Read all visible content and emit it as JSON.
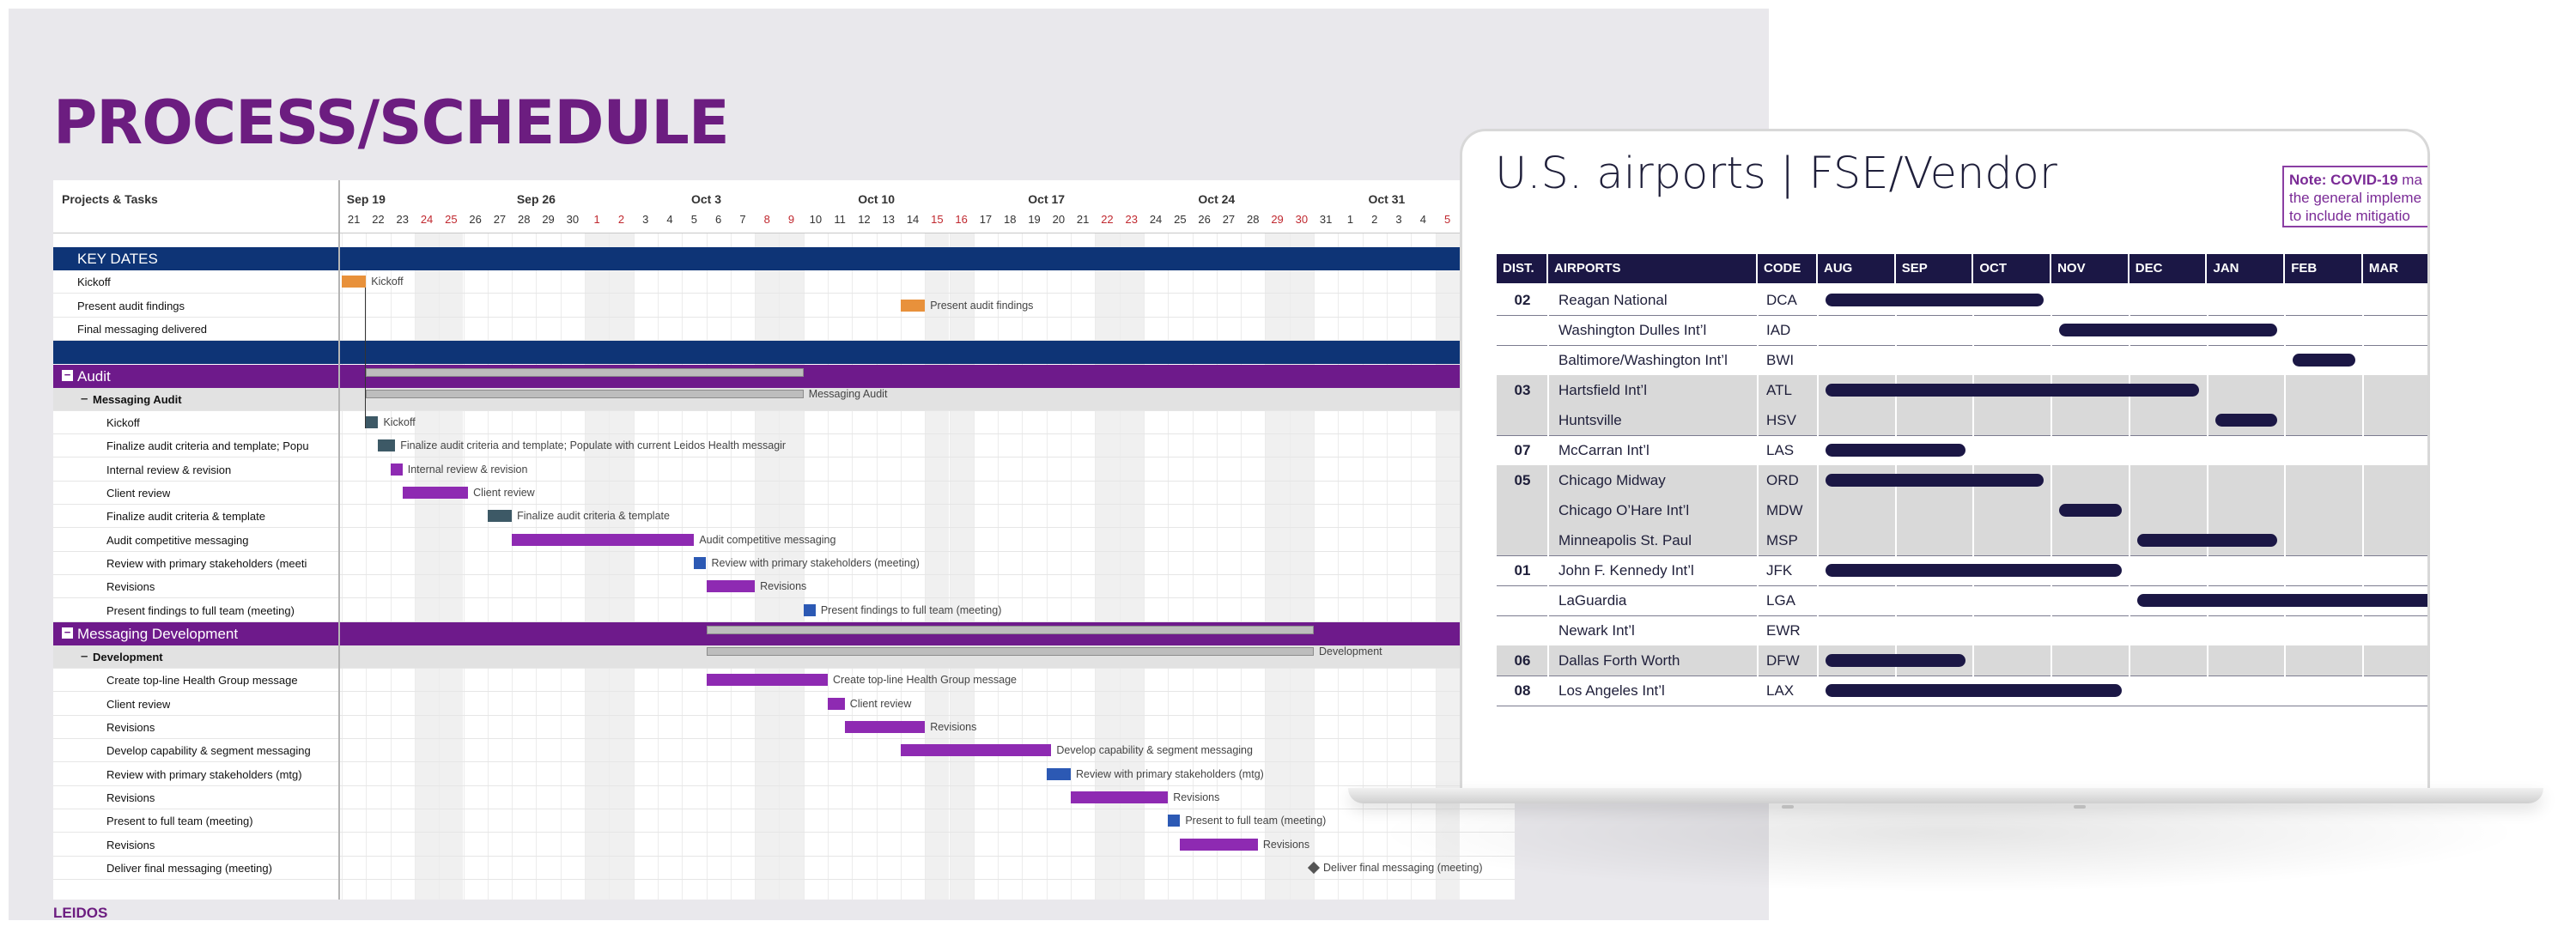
{
  "slide": {
    "title": "PROCESS/SCHEDULE",
    "footer_logo": "LEIDOS"
  },
  "gantt": {
    "task_header": "Projects & Tasks",
    "weeks": [
      "Sep 19",
      "Sep 26",
      "Oct 3",
      "Oct 10",
      "Oct 17",
      "Oct 24",
      "Oct 31"
    ],
    "days": [
      "21",
      "22",
      "23",
      "24",
      "25",
      "26",
      "27",
      "28",
      "29",
      "30",
      "1",
      "2",
      "3",
      "4",
      "5",
      "6",
      "7",
      "8",
      "9",
      "10",
      "11",
      "12",
      "13",
      "14",
      "15",
      "16",
      "17",
      "18",
      "19",
      "20",
      "21",
      "22",
      "23",
      "24",
      "25",
      "26",
      "27",
      "28",
      "29",
      "30",
      "31",
      "1",
      "2",
      "3",
      "4",
      "5"
    ],
    "weekend_day_indices": [
      3,
      4,
      10,
      11,
      17,
      18,
      24,
      25,
      31,
      32,
      38,
      39,
      45
    ],
    "rows": [
      {
        "id": "keydates",
        "type": "band-blue",
        "label": "KEY DATES"
      },
      {
        "id": "kickoff",
        "type": "task",
        "indent": 1,
        "label": "Kickoff",
        "bar": {
          "start": 0,
          "end": 1,
          "color": "orange"
        },
        "bar_label": "Kickoff"
      },
      {
        "id": "present",
        "type": "task",
        "indent": 1,
        "label": "Present audit findings",
        "bar": {
          "start": 23,
          "end": 24,
          "color": "orange"
        },
        "bar_label": "Present audit findings"
      },
      {
        "id": "final",
        "type": "task",
        "indent": 1,
        "label": "Final messaging delivered"
      },
      {
        "id": "spacer",
        "type": "band-blue",
        "label": ""
      },
      {
        "id": "audit",
        "type": "band-purple",
        "label": "Audit",
        "summary": {
          "start": 1,
          "end": 19
        }
      },
      {
        "id": "ma",
        "type": "sub",
        "label": "Messaging Audit",
        "summary": {
          "start": 1,
          "end": 19
        },
        "bar_label": "Messaging Audit"
      },
      {
        "id": "t1",
        "type": "task",
        "indent": 2,
        "label": "Kickoff",
        "bar": {
          "start": 1,
          "end": 1.5,
          "color": "teal"
        },
        "bar_label": "Kickoff"
      },
      {
        "id": "t2",
        "type": "task",
        "indent": 2,
        "label": "Finalize audit criteria and template; Popu",
        "bar": {
          "start": 1.5,
          "end": 2.2,
          "color": "teal"
        },
        "bar_label": "Finalize audit criteria and template; Populate with current Leidos Health messagir"
      },
      {
        "id": "t3",
        "type": "task",
        "indent": 2,
        "label": "Internal review & revision",
        "bar": {
          "start": 2,
          "end": 2.5,
          "color": "purple"
        },
        "bar_label": "Internal review & revision"
      },
      {
        "id": "t4",
        "type": "task",
        "indent": 2,
        "label": "Client review",
        "bar": {
          "start": 2.5,
          "end": 5.2,
          "color": "purple"
        },
        "bar_label": "Client review"
      },
      {
        "id": "t5",
        "type": "task",
        "indent": 2,
        "label": "Finalize audit criteria & template",
        "bar": {
          "start": 6,
          "end": 7,
          "color": "teal"
        },
        "bar_label": "Finalize audit criteria & template"
      },
      {
        "id": "t6",
        "type": "task",
        "indent": 2,
        "label": "Audit competitive messaging",
        "bar": {
          "start": 7,
          "end": 14.5,
          "color": "purple"
        },
        "bar_label": "Audit competitive messaging"
      },
      {
        "id": "t7",
        "type": "task",
        "indent": 2,
        "label": "Review with primary stakeholders (meeti",
        "bar": {
          "start": 14.5,
          "end": 15,
          "color": "blue"
        },
        "bar_label": "Review with primary stakeholders (meeting)"
      },
      {
        "id": "t8",
        "type": "task",
        "indent": 2,
        "label": "Revisions",
        "bar": {
          "start": 15,
          "end": 17,
          "color": "purple"
        },
        "bar_label": "Revisions"
      },
      {
        "id": "t9",
        "type": "task",
        "indent": 2,
        "label": "Present findings to full team (meeting)",
        "bar": {
          "start": 19,
          "end": 19.5,
          "color": "blue"
        },
        "bar_label": "Present findings to full team (meeting)"
      },
      {
        "id": "md",
        "type": "band-purple",
        "label": "Messaging Development",
        "summary": {
          "start": 15,
          "end": 40
        }
      },
      {
        "id": "dev",
        "type": "sub",
        "label": "Development",
        "summary": {
          "start": 15,
          "end": 40
        },
        "bar_label": "Development"
      },
      {
        "id": "d1",
        "type": "task",
        "indent": 2,
        "label": "Create top-line Health Group message",
        "bar": {
          "start": 15,
          "end": 20,
          "color": "purple"
        },
        "bar_label": "Create top-line Health Group message"
      },
      {
        "id": "d2",
        "type": "task",
        "indent": 2,
        "label": "Client review",
        "bar": {
          "start": 20,
          "end": 20.7,
          "color": "purple"
        },
        "bar_label": "Client review"
      },
      {
        "id": "d3",
        "type": "task",
        "indent": 2,
        "label": "Revisions",
        "bar": {
          "start": 20.7,
          "end": 24,
          "color": "purple"
        },
        "bar_label": "Revisions"
      },
      {
        "id": "d4",
        "type": "task",
        "indent": 2,
        "label": "Develop capability & segment messaging",
        "bar": {
          "start": 23,
          "end": 29.2,
          "color": "purple"
        },
        "bar_label": "Develop capability & segment messaging"
      },
      {
        "id": "d5",
        "type": "task",
        "indent": 2,
        "label": "Review with primary stakeholders (mtg)",
        "bar": {
          "start": 29,
          "end": 30,
          "color": "blue"
        },
        "bar_label": "Review with primary stakeholders (mtg)"
      },
      {
        "id": "d6",
        "type": "task",
        "indent": 2,
        "label": "Revisions",
        "bar": {
          "start": 30,
          "end": 34,
          "color": "purple"
        },
        "bar_label": "Revisions"
      },
      {
        "id": "d7",
        "type": "task",
        "indent": 2,
        "label": "Present to full team (meeting)",
        "bar": {
          "start": 34,
          "end": 34.5,
          "color": "blue"
        },
        "bar_label": "Present to full team (meeting)"
      },
      {
        "id": "d8",
        "type": "task",
        "indent": 2,
        "label": "Revisions",
        "bar": {
          "start": 34.5,
          "end": 37.7,
          "color": "purple"
        },
        "bar_label": "Revisions"
      },
      {
        "id": "d9",
        "type": "task",
        "indent": 2,
        "label": "Deliver final messaging (meeting)",
        "milestone": 40,
        "bar_label": "Deliver final messaging (meeting)"
      }
    ]
  },
  "airports": {
    "title": "U.S. airports | FSE/Vendor",
    "note_bold": "Note: COVID-19",
    "note_lines": [
      " ma",
      "the general impleme",
      "to include mitigatio"
    ],
    "headers": {
      "dist": "DIST.",
      "airports": "AIRPORTS",
      "code": "CODE"
    },
    "months": [
      "AUG",
      "SEP",
      "OCT",
      "NOV",
      "DEC",
      "JAN",
      "FEB",
      "MAR"
    ],
    "rows": [
      {
        "dist": "02",
        "name": "Reagan National",
        "code": "DCA",
        "start": 0.1,
        "end": 2.9
      },
      {
        "dist": "",
        "name": "Washington Dulles Int’l",
        "code": "IAD",
        "start": 3.1,
        "end": 5.9
      },
      {
        "dist": "",
        "name": "Baltimore/Washington Int’l",
        "code": "BWI",
        "start": 6.1,
        "end": 6.9
      },
      {
        "dist": "03",
        "name": "Hartsfield Int’l",
        "code": "ATL",
        "start": 0.1,
        "end": 4.9
      },
      {
        "dist": "",
        "name": "Huntsville",
        "code": "HSV",
        "start": 5.1,
        "end": 5.9
      },
      {
        "dist": "07",
        "name": "McCarran Int’l",
        "code": "LAS",
        "start": 0.1,
        "end": 1.9
      },
      {
        "dist": "05",
        "name": "Chicago Midway",
        "code": "ORD",
        "start": 0.1,
        "end": 2.9
      },
      {
        "dist": "",
        "name": "Chicago O’Hare Int’l",
        "code": "MDW",
        "start": 3.1,
        "end": 3.9
      },
      {
        "dist": "",
        "name": "Minneapolis St. Paul",
        "code": "MSP",
        "start": 4.1,
        "end": 5.9
      },
      {
        "dist": "01",
        "name": "John F. Kennedy Int’l",
        "code": "JFK",
        "start": 0.1,
        "end": 3.9
      },
      {
        "dist": "",
        "name": "LaGuardia",
        "code": "LGA",
        "start": 4.1,
        "end": 8
      },
      {
        "dist": "",
        "name": "Newark Int’l",
        "code": "EWR",
        "start": null,
        "end": null
      },
      {
        "dist": "06",
        "name": "Dallas Forth Worth",
        "code": "DFW",
        "start": 0.1,
        "end": 1.9
      },
      {
        "dist": "08",
        "name": "Los Angeles Int’l",
        "code": "LAX",
        "start": 0.1,
        "end": 3.9
      }
    ],
    "group_alt": [
      false,
      false,
      false,
      true,
      true,
      false,
      true,
      true,
      true,
      false,
      false,
      false,
      true,
      false
    ],
    "bar_color": "#1b1745"
  },
  "colors": {
    "brand_purple": "#6c1d80",
    "band_blue": "#0e3476",
    "band_purple": "#6e1a8b"
  }
}
